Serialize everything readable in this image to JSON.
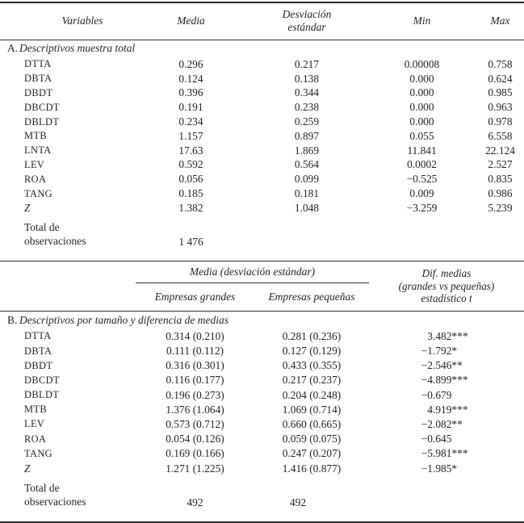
{
  "header_a": {
    "variables": "Variables",
    "media": "Media",
    "desviacion": "Desviación estándar",
    "min": "Min",
    "max": "Max"
  },
  "panel_a": {
    "letter": "A.",
    "title": "Descriptivos muestra total",
    "rows": [
      [
        "DTTA",
        "0.296",
        "0.217",
        "0.00008",
        "0.758"
      ],
      [
        "DBTA",
        "0.124",
        "0.138",
        "0.000",
        "0.624"
      ],
      [
        "DBDT",
        "0.396",
        "0.344",
        "0.000",
        "0.985"
      ],
      [
        "DBCDT",
        "0.191",
        "0.238",
        "0.000",
        "0.963"
      ],
      [
        "DBLDT",
        "0.234",
        "0.259",
        "0.000",
        "0.978"
      ],
      [
        "MTB",
        "1.157",
        "0.897",
        "0.055",
        "6.558"
      ],
      [
        "LNTA",
        "17.63",
        "1.869",
        "11.841",
        "22.124"
      ],
      [
        "LEV",
        "0.592",
        "0.564",
        "0.0002",
        "2.527"
      ],
      [
        "ROA",
        "0.056",
        "0.099",
        "−0.525",
        "0.835"
      ],
      [
        "TANG",
        "0.185",
        "0.181",
        "0.009",
        "0.986"
      ],
      [
        "Z",
        "1.382",
        "1.048",
        "−3.259",
        "5.239"
      ]
    ],
    "total_label": "Total de observaciones",
    "total_value": "1 476"
  },
  "panel_b": {
    "group_header": "Media (desviación estándar)",
    "col_grandes": "Empresas grandes",
    "col_pequenas": "Empresas pequeñas",
    "dif_header": [
      "Dif. medias",
      "(grandes vs pequeñas)",
      "estadístico t"
    ],
    "letter": "B.",
    "title": "Descriptivos por tamaño y diferencia de medias",
    "rows": [
      [
        "DTTA",
        "0.314 (0.210)",
        "0.281 (0.236)",
        "3.482***"
      ],
      [
        "DBTA",
        "0.111 (0.112)",
        "0.127 (0.129)",
        "−1.792*"
      ],
      [
        "DBDT",
        "0.316 (0.301)",
        "0.433 (0.355)",
        "−2.546**"
      ],
      [
        "DBCDT",
        "0.116 (0.177)",
        "0.217 (0.237)",
        "−4.899***"
      ],
      [
        "DBLDT",
        "0.196 (0.273)",
        "0.204 (0.248)",
        "−0.679"
      ],
      [
        "MTB",
        "1.376 (1.064)",
        "1.069 (0.714)",
        "4.919***"
      ],
      [
        "LEV",
        "0.573 (0.712)",
        "0.660 (0.665)",
        "−2.082**"
      ],
      [
        "ROA",
        "0.054 (0.126)",
        "0.059 (0.075)",
        "−0.645"
      ],
      [
        "TANG",
        "0.169 (0.166)",
        "0.247 (0.207)",
        "−5.981***"
      ],
      [
        "Z",
        "1.271 (1.225)",
        "1.416 (0.877)",
        "−1.985*"
      ]
    ],
    "total_label": "Total de observaciones",
    "total_grandes": "492",
    "total_pequenas": "492"
  }
}
